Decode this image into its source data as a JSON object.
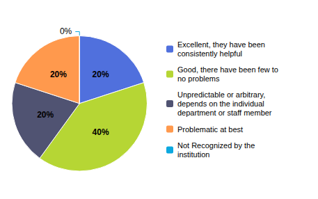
{
  "chart_data": {
    "type": "pie",
    "categories": [
      "Excellent, they have been\nconsistently helpful",
      "Good, there have been few to\nno problems",
      "Unpredictable or arbitrary,\ndepends on the individual\ndepartment or staff member",
      "Problematic at best",
      "Not Recognized by the\ninstitution"
    ],
    "values": [
      20,
      40,
      20,
      20,
      0
    ],
    "value_labels": [
      "20%",
      "40%",
      "20%",
      "20%",
      "0%"
    ],
    "data_labels": true,
    "legend": "right"
  }
}
